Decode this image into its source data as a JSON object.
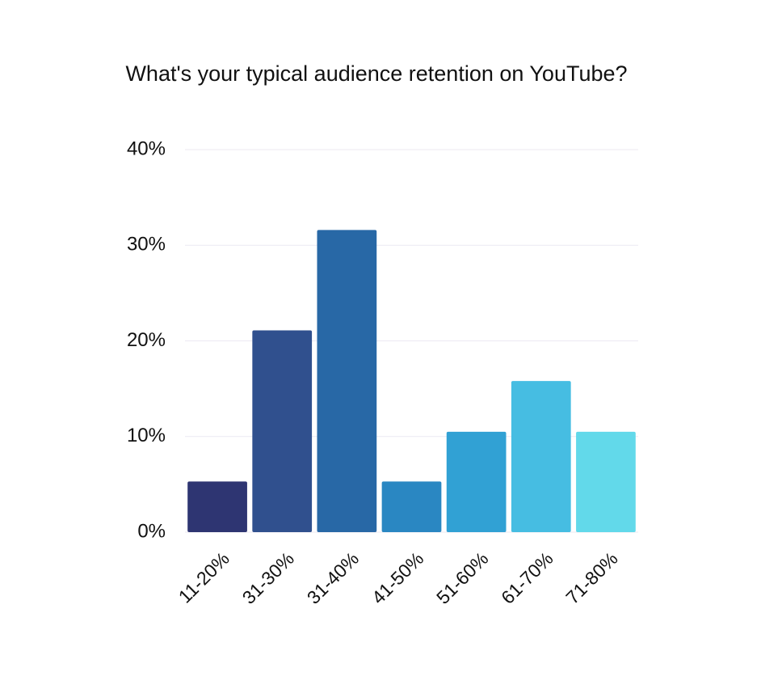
{
  "chart_data": {
    "type": "bar",
    "title": "What's your typical audience retention on YouTube?",
    "categories": [
      "11-20%",
      "31-30%",
      "31-40%",
      "41-50%",
      "51-60%",
      "61-70%",
      "71-80%"
    ],
    "values": [
      5.3,
      21.1,
      31.6,
      5.3,
      10.5,
      15.8,
      10.5
    ],
    "colors": [
      "#2e3572",
      "#30508e",
      "#2868a6",
      "#2a87c2",
      "#31a1d4",
      "#46bde2",
      "#62d9ea"
    ],
    "ylim": [
      0,
      40
    ],
    "yticks": [
      {
        "value": 0,
        "label": "0%"
      },
      {
        "value": 10,
        "label": "10%"
      },
      {
        "value": 20,
        "label": "20%"
      },
      {
        "value": 30,
        "label": "30%"
      },
      {
        "value": 40,
        "label": "40%"
      }
    ],
    "grid": true
  }
}
